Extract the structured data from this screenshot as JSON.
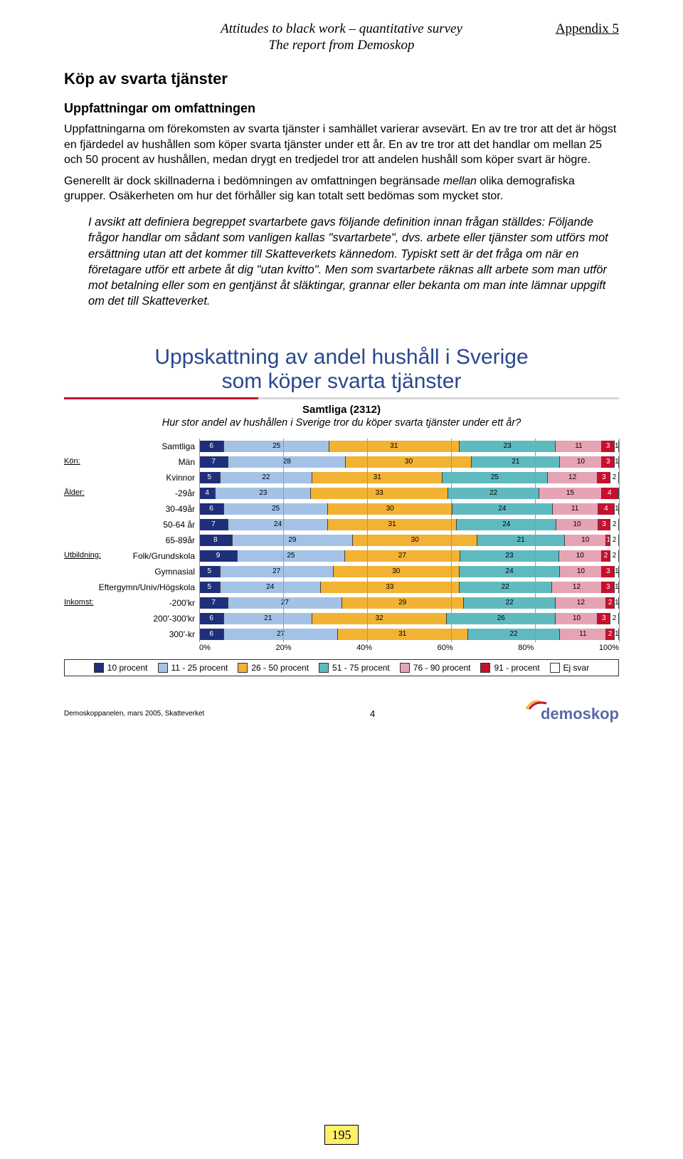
{
  "header": {
    "center_line1": "Attitudes to black work – quantitative survey",
    "center_line2": "The report from Demoskop",
    "right": "Appendix 5"
  },
  "section_title": "Köp av svarta tjänster",
  "subsection_title": "Uppfattningar om omfattningen",
  "paragraphs": {
    "p1": "Uppfattningarna om förekomsten av svarta tjänster i samhället varierar avsevärt. En av tre tror att det är högst en fjärdedel av hushållen som köper svarta tjänster under ett år. En av tre tror att det handlar om mellan 25 och 50 procent av hushållen, medan drygt en tredjedel tror att andelen hushåll som köper svart är högre.",
    "p2a": "Generellt är dock skillnaderna i bedömningen av omfattningen begränsade ",
    "p2b_it": "mellan",
    "p2c": " olika demografiska grupper. Osäkerheten om hur det förhåller sig kan totalt sett bedömas som mycket stor.",
    "indent": "I avsikt att definiera begreppet svartarbete gavs följande definition innan frågan ställdes: Följande frågor handlar om sådant som vanligen kallas \"svartarbete\", dvs. arbete eller tjänster som utförs mot ersättning utan att det kommer till Skatteverkets kännedom. Typiskt sett är det fråga om när en företagare utför ett arbete åt dig \"utan kvitto\". Men som svartarbete räknas allt arbete som man utför mot betalning eller som en gentjänst åt släktingar, grannar eller bekanta om man inte lämnar uppgift om det till Skatteverket."
  },
  "chart": {
    "type": "stacked-horizontal-bar",
    "title_line1": "Uppskattning av andel hushåll i Sverige",
    "title_line2": "som köper svarta tjänster",
    "sample_label": "Samtliga (2312)",
    "question": "Hur stor andel av hushållen i Sverige tror du köper svarta tjänster under ett år?",
    "series_colors": [
      "#1f2f7a",
      "#a3c2e6",
      "#f2b233",
      "#5fbabf",
      "#e6a3b4",
      "#c8102e",
      "#ffffff"
    ],
    "series_text_colors": [
      "#ffffff",
      "#000000",
      "#000000",
      "#000000",
      "#000000",
      "#ffffff",
      "#000000"
    ],
    "category_labels": {
      "kon": "Kön:",
      "alder": "Ålder:",
      "utbildning": "Utbildning:",
      "inkomst": "Inkomst:"
    },
    "rows": [
      {
        "label": "Samtliga",
        "values": [
          6,
          25,
          31,
          23,
          11,
          3,
          1
        ]
      },
      {
        "label": "Män",
        "values": [
          7,
          28,
          30,
          21,
          10,
          3,
          1
        ]
      },
      {
        "label": "Kvinnor",
        "values": [
          5,
          22,
          31,
          25,
          12,
          3,
          2
        ]
      },
      {
        "label": "-29år",
        "values": [
          4,
          23,
          33,
          22,
          15,
          4,
          0
        ]
      },
      {
        "label": "30-49år",
        "values": [
          6,
          25,
          30,
          24,
          11,
          4,
          1
        ]
      },
      {
        "label": "50-64 år",
        "values": [
          7,
          24,
          31,
          24,
          10,
          3,
          2
        ]
      },
      {
        "label": "65-89år",
        "values": [
          8,
          29,
          30,
          21,
          10,
          1,
          2
        ]
      },
      {
        "label": "Folk/Grundskola",
        "values": [
          9,
          25,
          27,
          23,
          10,
          2,
          2
        ]
      },
      {
        "label": "Gymnasial",
        "values": [
          5,
          27,
          30,
          24,
          10,
          3,
          1
        ]
      },
      {
        "label": "Eftergymn/Univ/Högskola",
        "values": [
          5,
          24,
          33,
          22,
          12,
          3,
          1
        ]
      },
      {
        "label": "-200'kr",
        "values": [
          7,
          27,
          29,
          22,
          12,
          2,
          1
        ]
      },
      {
        "label": "200'-300'kr",
        "values": [
          6,
          21,
          32,
          26,
          10,
          3,
          2
        ]
      },
      {
        "label": "300'-kr",
        "values": [
          6,
          27,
          31,
          22,
          11,
          2,
          1
        ]
      }
    ],
    "axis_ticks": [
      "0%",
      "20%",
      "40%",
      "60%",
      "80%",
      "100%"
    ],
    "legend": [
      "10 procent",
      "11 - 25 procent",
      "26 - 50 procent",
      "51 - 75 procent",
      "76 - 90 procent",
      "91 - procent",
      "Ej svar"
    ],
    "footer_left": "Demoskoppanelen, mars 2005, Skatteverket",
    "footer_center": "4",
    "footer_right": "demoskop"
  },
  "page_number": "195"
}
